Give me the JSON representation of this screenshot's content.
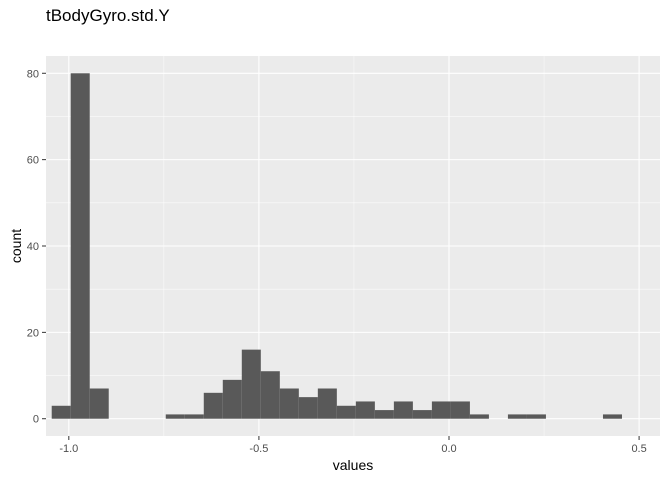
{
  "chart_data": {
    "type": "bar",
    "subtype": "histogram",
    "title": "tBodyGyro.std.Y",
    "xlabel": "values",
    "ylabel": "count",
    "xlim": [
      -1.06,
      0.555
    ],
    "ylim": [
      -4,
      84
    ],
    "x_ticks": [
      -1.0,
      -0.5,
      0.0,
      0.5
    ],
    "x_tick_labels": [
      "-1.0",
      "-0.5",
      "0.0",
      "0.5"
    ],
    "y_ticks": [
      0,
      20,
      40,
      60,
      80
    ],
    "y_tick_labels": [
      "0",
      "20",
      "40",
      "60",
      "80"
    ],
    "grid": true,
    "bins": [
      {
        "x0": -1.045,
        "x1": -0.995,
        "count": 3
      },
      {
        "x0": -0.995,
        "x1": -0.945,
        "count": 80
      },
      {
        "x0": -0.945,
        "x1": -0.895,
        "count": 7
      },
      {
        "x0": -0.745,
        "x1": -0.695,
        "count": 1
      },
      {
        "x0": -0.695,
        "x1": -0.645,
        "count": 1
      },
      {
        "x0": -0.645,
        "x1": -0.595,
        "count": 6
      },
      {
        "x0": -0.595,
        "x1": -0.545,
        "count": 9
      },
      {
        "x0": -0.545,
        "x1": -0.495,
        "count": 16
      },
      {
        "x0": -0.495,
        "x1": -0.445,
        "count": 11
      },
      {
        "x0": -0.445,
        "x1": -0.395,
        "count": 7
      },
      {
        "x0": -0.395,
        "x1": -0.345,
        "count": 5
      },
      {
        "x0": -0.345,
        "x1": -0.295,
        "count": 7
      },
      {
        "x0": -0.295,
        "x1": -0.245,
        "count": 3
      },
      {
        "x0": -0.245,
        "x1": -0.195,
        "count": 4
      },
      {
        "x0": -0.195,
        "x1": -0.145,
        "count": 2
      },
      {
        "x0": -0.145,
        "x1": -0.095,
        "count": 4
      },
      {
        "x0": -0.095,
        "x1": -0.045,
        "count": 2
      },
      {
        "x0": -0.045,
        "x1": 0.005,
        "count": 4
      },
      {
        "x0": 0.005,
        "x1": 0.055,
        "count": 4
      },
      {
        "x0": 0.055,
        "x1": 0.105,
        "count": 1
      },
      {
        "x0": 0.155,
        "x1": 0.205,
        "count": 1
      },
      {
        "x0": 0.205,
        "x1": 0.255,
        "count": 1
      },
      {
        "x0": 0.405,
        "x1": 0.455,
        "count": 1
      }
    ],
    "colors": {
      "panel_background": "#EBEBEB",
      "grid_major": "#FFFFFF",
      "bar_fill": "#595959",
      "tick_label": "#4D4D4D",
      "tick_mark": "#333333",
      "axis_title": "#000000"
    }
  }
}
